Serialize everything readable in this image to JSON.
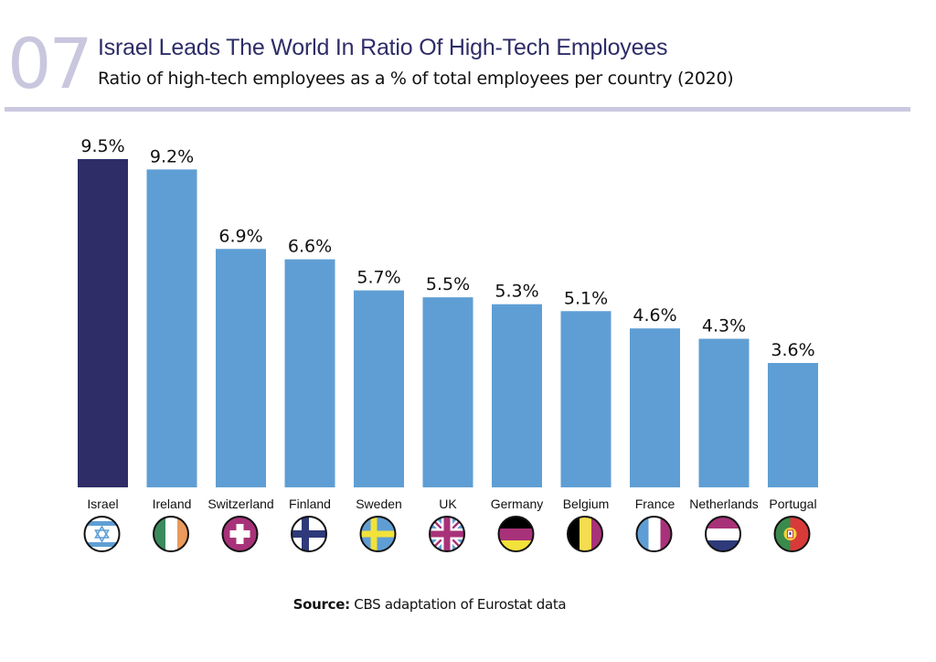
{
  "header": {
    "number": "07",
    "title": "Israel Leads The World In Ratio Of High-Tech Employees",
    "subtitle": "Ratio of high-tech employees as a % of total employees per country (2020)"
  },
  "source": {
    "label": "Source:",
    "text": "CBS adaptation of Eurostat data"
  },
  "colors": {
    "highlight": "#2e2d67",
    "bar": "#5f9ed4",
    "rule": "#cac8e0",
    "number": "#c9c7de"
  },
  "chart_data": {
    "type": "bar",
    "title": "Ratio of high-tech employees as a % of total employees per country (2020)",
    "xlabel": "",
    "ylabel": "% of total employees",
    "ylim": [
      0,
      9.5
    ],
    "grid": false,
    "legend": "none",
    "categories": [
      "Israel",
      "Ireland",
      "Switzerland",
      "Finland",
      "Sweden",
      "UK",
      "Germany",
      "Belgium",
      "France",
      "Netherlands",
      "Portugal"
    ],
    "values": [
      9.5,
      9.2,
      6.9,
      6.6,
      5.7,
      5.5,
      5.3,
      5.1,
      4.6,
      4.3,
      3.6
    ],
    "data_labels": [
      "9.5%",
      "9.2%",
      "6.9%",
      "6.6%",
      "5.7%",
      "5.5%",
      "5.3%",
      "5.1%",
      "4.6%",
      "4.3%",
      "3.6%"
    ],
    "highlighted_category": "Israel",
    "flag_icons": [
      "israel-flag-icon",
      "ireland-flag-icon",
      "switzerland-flag-icon",
      "finland-flag-icon",
      "sweden-flag-icon",
      "uk-flag-icon",
      "germany-flag-icon",
      "belgium-flag-icon",
      "france-flag-icon",
      "netherlands-flag-icon",
      "portugal-flag-icon"
    ]
  }
}
